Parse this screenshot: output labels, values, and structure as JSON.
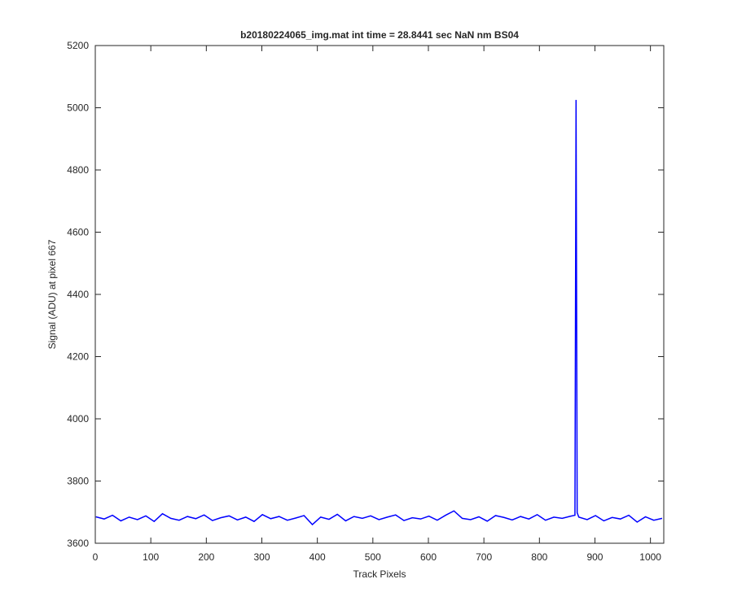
{
  "chart_data": {
    "type": "line",
    "title": "b20180224065_img.mat int time = 28.8441 sec  NaN nm BS04",
    "x_label": "Track Pixels",
    "y_label": "Signal (ADU) at pixel 667",
    "x": [
      1,
      16,
      31,
      46,
      61,
      76,
      91,
      106,
      121,
      136,
      151,
      166,
      181,
      196,
      211,
      226,
      241,
      256,
      271,
      286,
      301,
      316,
      331,
      346,
      361,
      376,
      391,
      406,
      421,
      436,
      451,
      466,
      481,
      496,
      511,
      526,
      541,
      556,
      571,
      586,
      601,
      616,
      631,
      646,
      661,
      676,
      691,
      706,
      721,
      736,
      751,
      766,
      781,
      796,
      811,
      826,
      841,
      856,
      864,
      866,
      868,
      871,
      886,
      901,
      916,
      931,
      946,
      961,
      976,
      991,
      1006,
      1021
    ],
    "series": [
      {
        "color": "#0000ff",
        "values": [
          3685,
          3678,
          3690,
          3672,
          3684,
          3676,
          3688,
          3670,
          3695,
          3680,
          3674,
          3686,
          3679,
          3691,
          3673,
          3682,
          3688,
          3675,
          3684,
          3670,
          3692,
          3679,
          3686,
          3674,
          3681,
          3689,
          3660,
          3684,
          3677,
          3693,
          3672,
          3686,
          3680,
          3688,
          3676,
          3684,
          3691,
          3673,
          3682,
          3678,
          3687,
          3674,
          3690,
          3704,
          3680,
          3676,
          3685,
          3671,
          3689,
          3683,
          3675,
          3686,
          3678,
          3692,
          3674,
          3684,
          3680,
          3687,
          3690,
          5025,
          3698,
          3684,
          3676,
          3689,
          3672,
          3683,
          3678,
          3690,
          3668,
          3685,
          3674,
          3680
        ]
      }
    ],
    "xlim": [
      0,
      1024
    ],
    "ylim": [
      3600,
      5200
    ],
    "xticks": [
      0,
      100,
      200,
      300,
      400,
      500,
      600,
      700,
      800,
      900,
      1000
    ],
    "yticks": [
      3600,
      3800,
      4000,
      4200,
      4400,
      4600,
      4800,
      5000,
      5200
    ]
  }
}
